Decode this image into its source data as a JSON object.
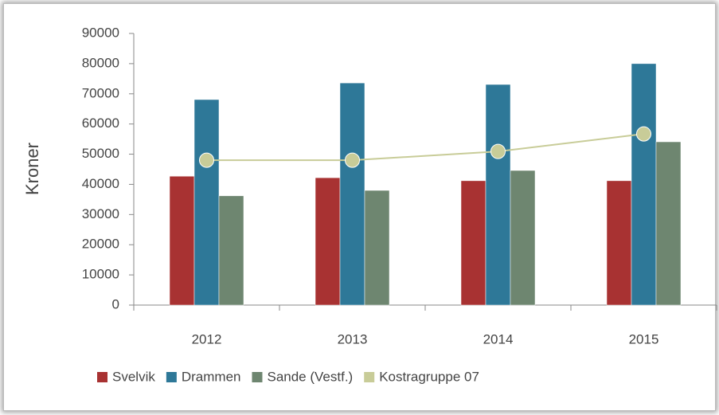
{
  "chart_data": {
    "type": "bar",
    "y_label": "Kroner",
    "categories": [
      "2012",
      "2013",
      "2014",
      "2015"
    ],
    "series": [
      {
        "name": "Svelvik",
        "color": "#a83232",
        "values": [
          42700,
          42200,
          41200,
          41200
        ]
      },
      {
        "name": "Drammen",
        "color": "#2e7898",
        "values": [
          68100,
          73600,
          73100,
          80000
        ]
      },
      {
        "name": "Sande (Vestf.)",
        "color": "#6e8670",
        "values": [
          36200,
          38000,
          44600,
          54100
        ]
      },
      {
        "name": "Kostragruppe 07",
        "color": "#c8cc98",
        "type": "line",
        "values": [
          48000,
          48000,
          50900,
          56700
        ]
      }
    ],
    "ylim": [
      0,
      90000
    ],
    "yticks": [
      0,
      10000,
      20000,
      30000,
      40000,
      50000,
      60000,
      70000,
      80000,
      90000
    ],
    "legend": "bottom"
  }
}
